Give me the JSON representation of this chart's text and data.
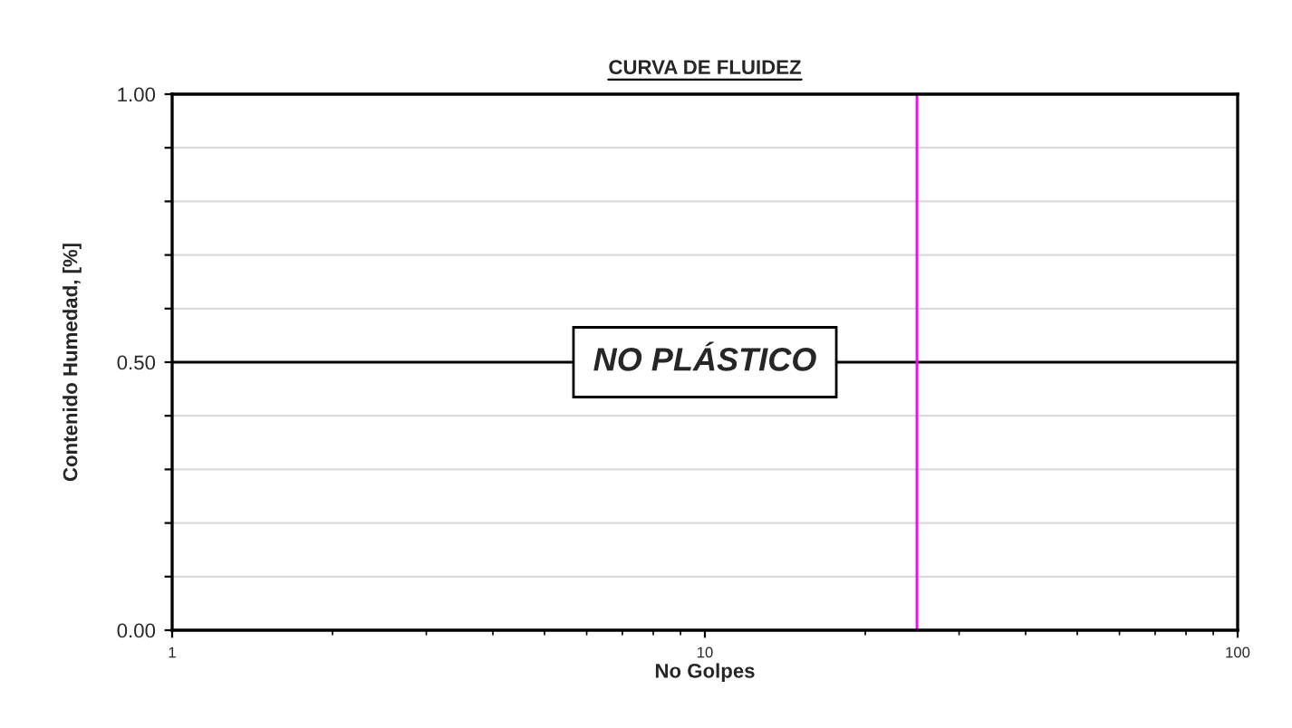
{
  "chart_data": {
    "type": "line",
    "title": "CURVA DE FLUIDEZ",
    "xlabel": "No Golpes",
    "ylabel": "Contenido Humedad, [%]",
    "log": "x",
    "xlim": [
      1,
      100
    ],
    "xticks": [
      1,
      10,
      100
    ],
    "ylim": [
      0,
      1
    ],
    "yticks": [
      {
        "value": 0,
        "label": "0.00"
      },
      {
        "value": 0.1,
        "label": null
      },
      {
        "value": 0.2,
        "label": null
      },
      {
        "value": 0.3,
        "label": null
      },
      {
        "value": 0.4,
        "label": null
      },
      {
        "value": 0.5,
        "label": "0.50"
      },
      {
        "value": 0.6,
        "label": null
      },
      {
        "value": 0.7,
        "label": null
      },
      {
        "value": 0.8,
        "label": null
      },
      {
        "value": 0.9,
        "label": null
      },
      {
        "value": 1,
        "label": "1.00"
      }
    ],
    "grid": "y",
    "ref_lines": [
      {
        "axis": "y",
        "value": 0.5,
        "label": "NO PLÁSTICO",
        "color": "#000000"
      },
      {
        "axis": "x",
        "value": 25,
        "color": "#ff00ff"
      }
    ]
  }
}
